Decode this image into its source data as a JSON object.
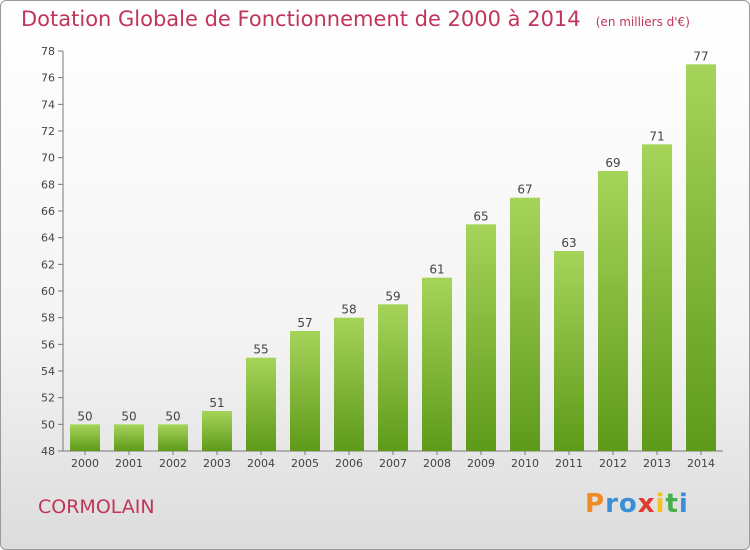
{
  "header": {
    "title": "Dotation Globale de Fonctionnement de 2000 à 2014",
    "unit": "(en milliers d'€)"
  },
  "commune": "CORMOLAIN",
  "logo": {
    "letters": [
      "P",
      "r",
      "o",
      "x",
      "i",
      "t",
      "i"
    ],
    "colors": [
      "#f08a24",
      "#3a8fd6",
      "#3a8fd6",
      "#e23b2e",
      "#f2c41b",
      "#48b04b",
      "#3a8fd6"
    ]
  },
  "chart_data": {
    "type": "bar",
    "categories": [
      "2000",
      "2001",
      "2002",
      "2003",
      "2004",
      "2005",
      "2006",
      "2007",
      "2008",
      "2009",
      "2010",
      "2011",
      "2012",
      "2013",
      "2014"
    ],
    "values": [
      50,
      50,
      50,
      51,
      55,
      57,
      58,
      59,
      61,
      65,
      67,
      63,
      69,
      71,
      77
    ],
    "data_labels": [
      "50",
      "50",
      "50",
      "51",
      "55",
      "57",
      "58",
      "59",
      "61",
      "65",
      "67",
      "63",
      "69",
      "71",
      "77"
    ],
    "yticks": [
      "48",
      "50",
      "52",
      "54",
      "56",
      "58",
      "60",
      "62",
      "64",
      "66",
      "68",
      "70",
      "72",
      "74",
      "76",
      "78"
    ],
    "ylim": [
      48,
      78
    ],
    "grid": false,
    "bar_color_light": "#a6d45a",
    "bar_color_dark": "#5e9a1a"
  }
}
